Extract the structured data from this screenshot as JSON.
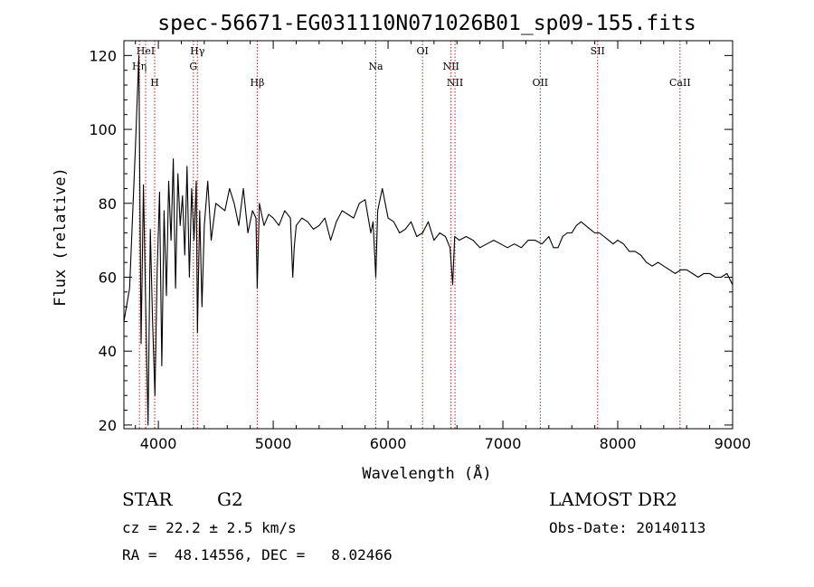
{
  "chart_data": {
    "type": "line",
    "title": "spec-56671-EG031110N071026B01_sp09-155.fits",
    "xlabel": "Wavelength (Å)",
    "ylabel": "Flux (relative)",
    "xlim": [
      3700,
      9000
    ],
    "ylim": [
      19,
      124
    ],
    "xticks": [
      4000,
      5000,
      6000,
      7000,
      8000,
      9000
    ],
    "yticks": [
      20,
      40,
      60,
      80,
      100,
      120
    ],
    "line_color": "#000000",
    "marker_color": "#b22222",
    "series": [
      {
        "values_x": [
          3700,
          3750,
          3800,
          3830,
          3850,
          3870,
          3890,
          3910,
          3930,
          3950,
          3970,
          3990,
          4010,
          4030,
          4050,
          4070,
          4090,
          4110,
          4130,
          4150,
          4170,
          4190,
          4210,
          4230,
          4250,
          4270,
          4290,
          4310,
          4330,
          4340,
          4360,
          4380,
          4400,
          4430,
          4460,
          4500,
          4540,
          4580,
          4620,
          4660,
          4700,
          4740,
          4780,
          4820,
          4850,
          4861,
          4880,
          4920,
          4960,
          5000,
          5050,
          5100,
          5150,
          5170,
          5183,
          5200,
          5250,
          5300,
          5350,
          5400,
          5450,
          5500,
          5550,
          5600,
          5650,
          5700,
          5750,
          5800,
          5850,
          5870,
          5893,
          5910,
          5950,
          6000,
          6050,
          6100,
          6150,
          6200,
          6250,
          6300,
          6350,
          6400,
          6450,
          6500,
          6540,
          6563,
          6580,
          6620,
          6680,
          6740,
          6800,
          6860,
          6920,
          6980,
          7040,
          7100,
          7160,
          7220,
          7280,
          7340,
          7400,
          7440,
          7480,
          7520,
          7560,
          7600,
          7640,
          7680,
          7720,
          7760,
          7800,
          7840,
          7880,
          7920,
          7960,
          8000,
          8050,
          8100,
          8150,
          8200,
          8250,
          8300,
          8350,
          8400,
          8450,
          8500,
          8550,
          8600,
          8650,
          8700,
          8750,
          8800,
          8850,
          8900,
          8950,
          9000
        ],
        "values_y": [
          48,
          57,
          95,
          120,
          42,
          85,
          52,
          20,
          73,
          48,
          28,
          62,
          83,
          36,
          78,
          55,
          86,
          70,
          92,
          57,
          88,
          74,
          82,
          66,
          90,
          60,
          84,
          70,
          86,
          45,
          78,
          52,
          74,
          86,
          70,
          80,
          79,
          78,
          84,
          80,
          74,
          84,
          72,
          78,
          76,
          57,
          80,
          74,
          77,
          76,
          74,
          78,
          76,
          60,
          68,
          74,
          76,
          75,
          73,
          74,
          76,
          70,
          75,
          78,
          77,
          76,
          80,
          81,
          72,
          75,
          60,
          78,
          84,
          76,
          75,
          72,
          73,
          75,
          71,
          72,
          75,
          70,
          72,
          71,
          68,
          58,
          71,
          70,
          71,
          70,
          68,
          69,
          70,
          69,
          68,
          69,
          68,
          70,
          70,
          69,
          71,
          68,
          68,
          71,
          72,
          72,
          74,
          75,
          74,
          73,
          72,
          72,
          71,
          70,
          69,
          70,
          69,
          67,
          67,
          66,
          64,
          63,
          64,
          63,
          62,
          61,
          62,
          62,
          61,
          60,
          61,
          61,
          60,
          60,
          61,
          58
        ]
      }
    ],
    "spectral_lines": [
      {
        "label": "HeI",
        "x": 3889,
        "row": 0
      },
      {
        "label": "Hη",
        "x": 3835,
        "row": 1
      },
      {
        "label": "H",
        "x": 3968,
        "row": 2
      },
      {
        "label": "Hγ",
        "x": 4340,
        "row": 0
      },
      {
        "label": "G",
        "x": 4305,
        "row": 1
      },
      {
        "label": "Hβ",
        "x": 4861,
        "row": 2
      },
      {
        "label": "Na",
        "x": 5893,
        "row": 1
      },
      {
        "label": "OI",
        "x": 6300,
        "row": 0
      },
      {
        "label": "NII",
        "x": 6548,
        "row": 1
      },
      {
        "label": "NII",
        "x": 6583,
        "row": 2
      },
      {
        "label": "OII",
        "x": 7325,
        "row": 2
      },
      {
        "label": "SII",
        "x": 7825,
        "row": 0
      },
      {
        "label": "CaII",
        "x": 8542,
        "row": 2
      }
    ]
  },
  "info": {
    "class": "STAR",
    "subclass": "G2",
    "survey": "LAMOST DR2",
    "cz": "cz = 22.2 ± 2.5 km/s",
    "obs_date": "Obs-Date: 20140113",
    "coords": "RA =  48.14556, DEC =   8.02466"
  }
}
